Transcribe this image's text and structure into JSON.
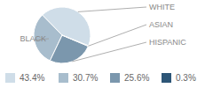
{
  "chart_data": {
    "type": "pie",
    "categories": [
      "WHITE",
      "BLACK",
      "HISPANIC",
      "ASIAN"
    ],
    "values": [
      43.4,
      30.7,
      25.6,
      0.3
    ],
    "value_labels": [
      "43.4%",
      "30.7%",
      "25.6%",
      "0.3%"
    ],
    "colors": [
      "#cfdde8",
      "#a8bdcd",
      "#7b97ad",
      "#2d5677"
    ],
    "legend": "bottom"
  }
}
